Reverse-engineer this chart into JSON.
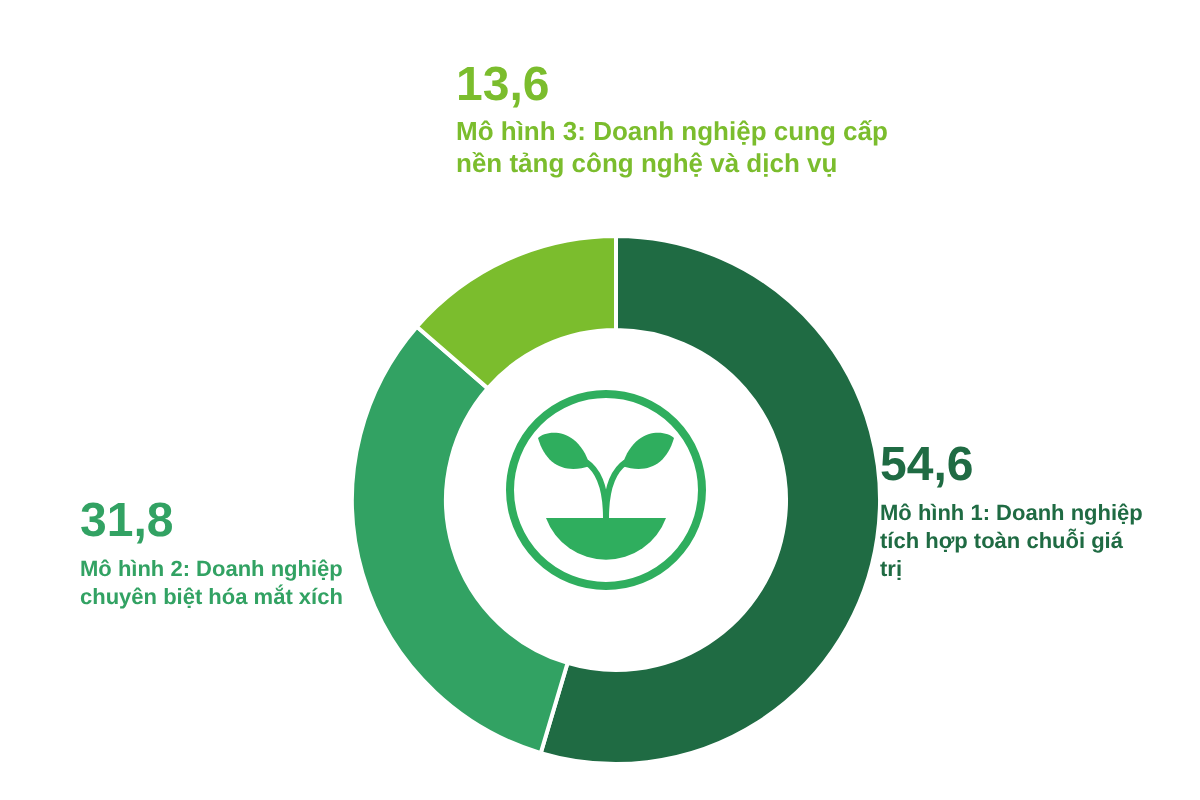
{
  "chart_data": {
    "type": "donut",
    "categories": [
      "Mô hình 1: Doanh nghiệp tích hợp toàn chuỗi giá trị",
      "Mô hình 2: Doanh nghiệp chuyên biệt hóa mắt xích",
      "Mô hình 3: Doanh nghiệp cung cấp nền tảng công nghệ và dịch vụ"
    ],
    "values": [
      54.6,
      31.8,
      13.6
    ],
    "value_labels": [
      "54,6",
      "31,8",
      "13,6"
    ],
    "colors": [
      "#1f6b43",
      "#32a263",
      "#7bbd2d"
    ],
    "legend": false
  }
}
